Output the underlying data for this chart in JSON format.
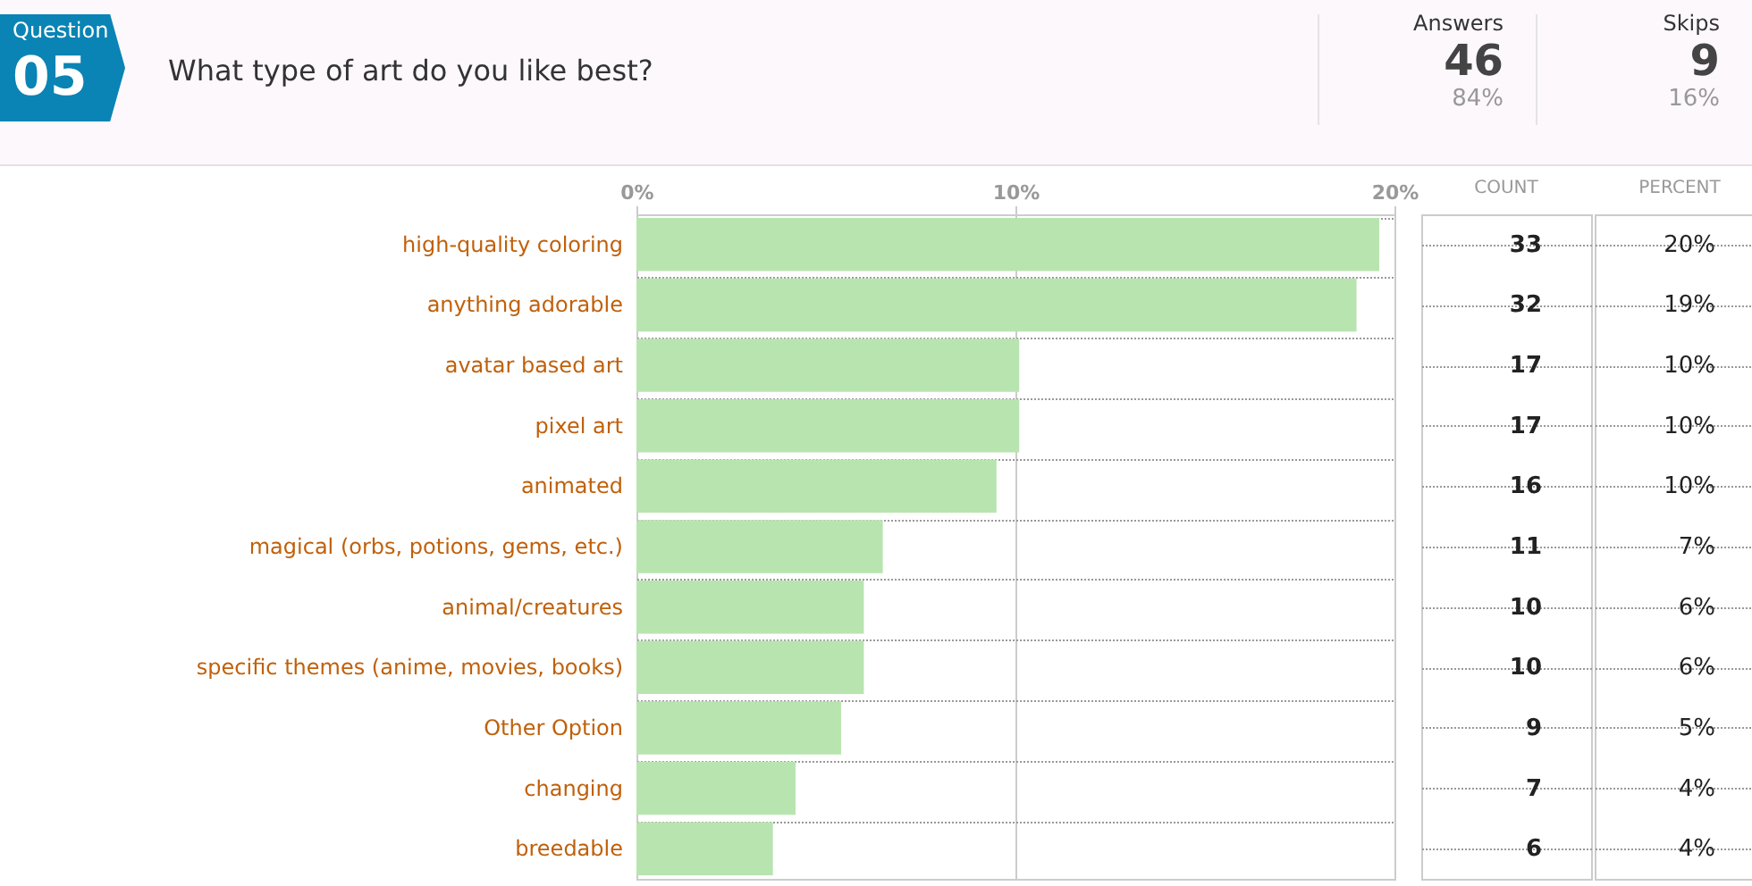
{
  "chart_data": {
    "type": "bar",
    "orientation": "horizontal",
    "title": "What type of art do you like best?",
    "categories": [
      "high-quality coloring",
      "anything adorable",
      "avatar based art",
      "pixel art",
      "animated",
      "magical (orbs, potions, gems, etc.)",
      "animal/creatures",
      "specific themes (anime, movies, books)",
      "Other Option",
      "changing",
      "breedable"
    ],
    "values": [
      19.6,
      19.0,
      10.1,
      10.1,
      9.5,
      6.5,
      6.0,
      6.0,
      5.4,
      4.2,
      3.6
    ],
    "color": "#b8e4b0",
    "value_labels": [
      "20%",
      "19%",
      "10%",
      "10%",
      "10%",
      "7%",
      "6%",
      "6%",
      "5%",
      "4%",
      "4%"
    ],
    "xlim": [
      0,
      20
    ],
    "xticks": [
      {
        "value": 0,
        "label": "0%"
      },
      {
        "value": 10,
        "label": "10%"
      },
      {
        "value": 20,
        "label": "20%"
      }
    ],
    "grid": true,
    "annotations": [
      "Question",
      "05",
      "Answers",
      "46",
      "84%",
      "Skips",
      "9",
      "16%",
      "COUNT",
      "PERCENT",
      "33",
      "32",
      "17",
      "17",
      "16",
      "11",
      "10",
      "10",
      "9",
      "7",
      "6"
    ]
  }
}
